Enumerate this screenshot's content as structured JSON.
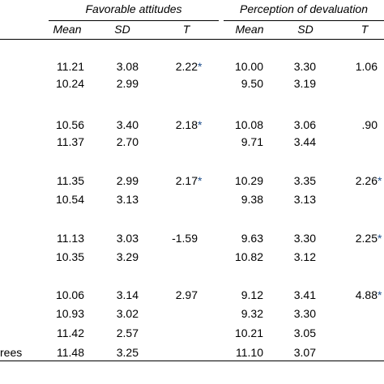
{
  "header": {
    "group1": "Favorable attitudes",
    "group2": "Perception of devaluation",
    "columns": [
      "Mean",
      "SD",
      "T",
      "Mean",
      "SD",
      "T"
    ]
  },
  "rows": [
    {
      "label": "",
      "m1": "11.21",
      "sd1": "3.08",
      "t1": "2.22",
      "t1star": "*",
      "m2": "10.00",
      "sd2": "3.30",
      "t2": "1.06",
      "t2star": ""
    },
    {
      "label": "",
      "m1": "10.24",
      "sd1": "2.99",
      "t1": "",
      "t1star": "",
      "m2": "9.50",
      "sd2": "3.19",
      "t2": "",
      "t2star": ""
    },
    {
      "label": "",
      "m1": "10.56",
      "sd1": "3.40",
      "t1": "2.18",
      "t1star": "*",
      "m2": "10.08",
      "sd2": "3.06",
      "t2": ".90",
      "t2star": ""
    },
    {
      "label": "",
      "m1": "11.37",
      "sd1": "2.70",
      "t1": "",
      "t1star": "",
      "m2": "9.71",
      "sd2": "3.44",
      "t2": "",
      "t2star": ""
    },
    {
      "label": "",
      "m1": "11.35",
      "sd1": "2.99",
      "t1": "2.17",
      "t1star": "*",
      "m2": "10.29",
      "sd2": "3.35",
      "t2": "2.26",
      "t2star": "*"
    },
    {
      "label": "",
      "m1": "10.54",
      "sd1": "3.13",
      "t1": "",
      "t1star": "",
      "m2": "9.38",
      "sd2": "3.13",
      "t2": "",
      "t2star": ""
    },
    {
      "label": "",
      "m1": "11.13",
      "sd1": "3.03",
      "t1": "-1.59",
      "t1star": "",
      "m2": "9.63",
      "sd2": "3.30",
      "t2": "2.25",
      "t2star": "*"
    },
    {
      "label": "",
      "m1": "10.35",
      "sd1": "3.29",
      "t1": "",
      "t1star": "",
      "m2": "10.82",
      "sd2": "3.12",
      "t2": "",
      "t2star": ""
    },
    {
      "label": "",
      "m1": "10.06",
      "sd1": "3.14",
      "t1": "2.97",
      "t1star": "",
      "m2": "9.12",
      "sd2": "3.41",
      "t2": "4.88",
      "t2star": "*"
    },
    {
      "label": "",
      "m1": "10.93",
      "sd1": "3.02",
      "t1": "",
      "t1star": "",
      "m2": "9.32",
      "sd2": "3.30",
      "t2": "",
      "t2star": ""
    },
    {
      "label": "",
      "m1": "11.42",
      "sd1": "2.57",
      "t1": "",
      "t1star": "",
      "m2": "10.21",
      "sd2": "3.05",
      "t2": "",
      "t2star": ""
    },
    {
      "label": "rees",
      "m1": "11.48",
      "sd1": "3.25",
      "t1": "",
      "t1star": "",
      "m2": "11.10",
      "sd2": "3.07",
      "t2": "",
      "t2star": ""
    }
  ]
}
